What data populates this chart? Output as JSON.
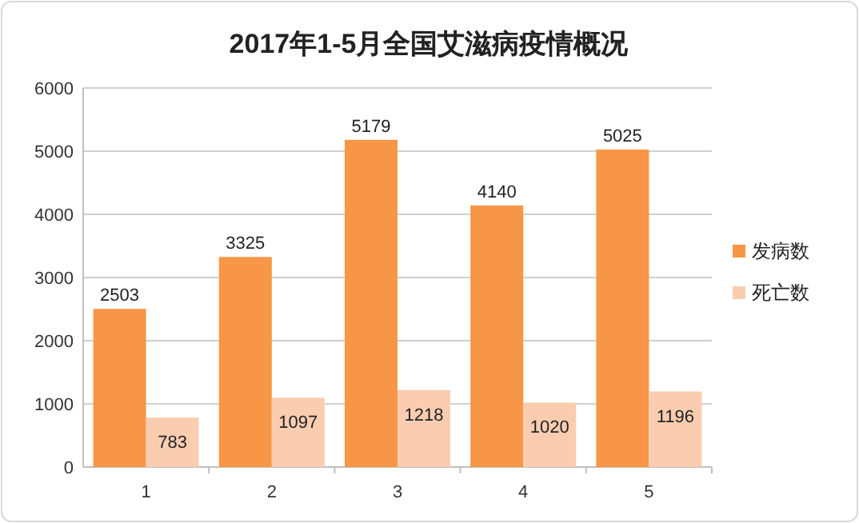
{
  "chart_data": {
    "type": "bar",
    "title": "2017年1-5月全国艾滋病疫情概况",
    "categories": [
      "1",
      "2",
      "3",
      "4",
      "5"
    ],
    "series": [
      {
        "name": "发病数",
        "color": "#f79646",
        "values": [
          2503,
          3325,
          5179,
          4140,
          5025
        ]
      },
      {
        "name": "死亡数",
        "color": "#fbcdb0",
        "values": [
          783,
          1097,
          1218,
          1020,
          1196
        ]
      }
    ],
    "ylim": [
      0,
      6000
    ],
    "yticks": [
      0,
      1000,
      2000,
      3000,
      4000,
      5000,
      6000
    ],
    "grid": "y",
    "legend": "right",
    "data_labels": true
  }
}
